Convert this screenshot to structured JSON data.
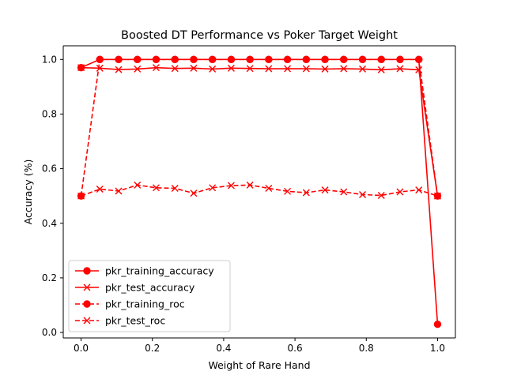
{
  "chart_data": {
    "type": "line",
    "title": "Boosted DT Performance vs Poker Target Weight",
    "xlabel": "Weight of Rare Hand",
    "ylabel": "Accuracy (%)",
    "xlim": [
      -0.05,
      1.05
    ],
    "ylim": [
      -0.02,
      1.05
    ],
    "xticks": [
      0.0,
      0.2,
      0.4,
      0.6,
      0.8,
      1.0
    ],
    "xtick_labels": [
      "0.0",
      "0.2",
      "0.4",
      "0.6",
      "0.8",
      "1.0"
    ],
    "yticks": [
      0.0,
      0.2,
      0.4,
      0.6,
      0.8,
      1.0
    ],
    "ytick_labels": [
      "0.0",
      "0.2",
      "0.4",
      "0.6",
      "0.8",
      "1.0"
    ],
    "grid": false,
    "legend_position": "lower-left",
    "x": [
      0.0,
      0.0526,
      0.1053,
      0.1579,
      0.2105,
      0.2632,
      0.3158,
      0.3684,
      0.4211,
      0.4737,
      0.5263,
      0.5789,
      0.6316,
      0.6842,
      0.7368,
      0.7895,
      0.8421,
      0.8947,
      0.9474,
      1.0
    ],
    "series": [
      {
        "name": "pkr_training_accuracy",
        "color": "#ff0000",
        "linestyle": "solid",
        "marker": "circle",
        "values": [
          0.97,
          1.0,
          1.0,
          1.0,
          1.0,
          1.0,
          1.0,
          1.0,
          1.0,
          1.0,
          1.0,
          1.0,
          1.0,
          1.0,
          1.0,
          1.0,
          1.0,
          1.0,
          1.0,
          0.03
        ]
      },
      {
        "name": "pkr_test_accuracy",
        "color": "#ff0000",
        "linestyle": "solid",
        "marker": "x",
        "values": [
          0.97,
          0.968,
          0.963,
          0.965,
          0.97,
          0.967,
          0.968,
          0.965,
          0.968,
          0.967,
          0.966,
          0.966,
          0.966,
          0.965,
          0.966,
          0.965,
          0.962,
          0.966,
          0.962,
          0.5
        ]
      },
      {
        "name": "pkr_training_roc",
        "color": "#ff0000",
        "linestyle": "dashed",
        "marker": "circle",
        "values": [
          0.5,
          1.0,
          1.0,
          1.0,
          1.0,
          1.0,
          1.0,
          1.0,
          1.0,
          1.0,
          1.0,
          1.0,
          1.0,
          1.0,
          1.0,
          1.0,
          1.0,
          1.0,
          1.0,
          0.5
        ]
      },
      {
        "name": "pkr_test_roc",
        "color": "#ff0000",
        "linestyle": "dashed",
        "marker": "x",
        "values": [
          0.5,
          0.525,
          0.518,
          0.54,
          0.53,
          0.528,
          0.51,
          0.53,
          0.538,
          0.54,
          0.528,
          0.517,
          0.512,
          0.522,
          0.515,
          0.505,
          0.502,
          0.515,
          0.522,
          0.5
        ]
      }
    ]
  }
}
